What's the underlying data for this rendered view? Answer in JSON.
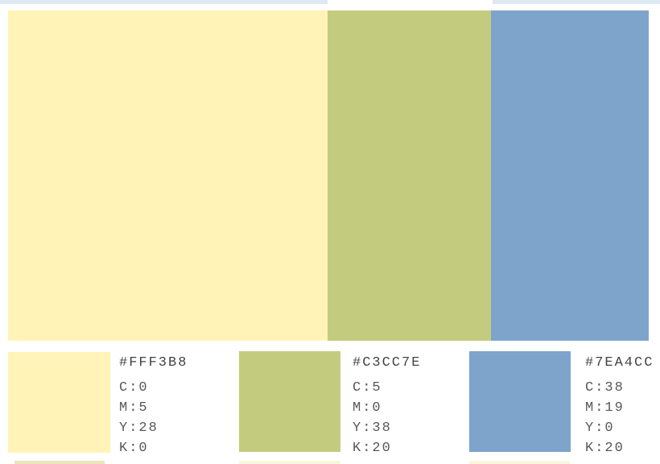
{
  "page": {
    "background": "#ffffff",
    "text_color_hex_label": "#434343",
    "text_color_cmyk": "#585858"
  },
  "banner": {
    "blocks": [
      {
        "name": "yellow",
        "hex": "#FFF3B8"
      },
      {
        "name": "green",
        "hex": "#C3CC7E"
      },
      {
        "name": "blue",
        "hex": "#7EA4CC"
      }
    ]
  },
  "swatches": [
    {
      "name": "yellow",
      "hex": "#FFF3B8",
      "hex_label": "#FFF3B8",
      "cmyk_lines": [
        "C:0",
        "M:5",
        "Y:28",
        "K:0"
      ]
    },
    {
      "name": "green",
      "hex": "#C3CC7E",
      "hex_label": "#C3CC7E",
      "cmyk_lines": [
        "C:5",
        "M:0",
        "Y:38",
        "K:20"
      ]
    },
    {
      "name": "blue",
      "hex": "#7EA4CC",
      "hex_label": "#7EA4CC",
      "cmyk_lines": [
        "C:38",
        "M:19",
        "Y:0",
        "K:20"
      ]
    }
  ],
  "crop_artifacts": {
    "top_sliver_color": "#dde9f4",
    "bottom_sliver_colors": [
      "#ece4bd",
      "#faf5dd",
      "#faf5dd"
    ]
  }
}
